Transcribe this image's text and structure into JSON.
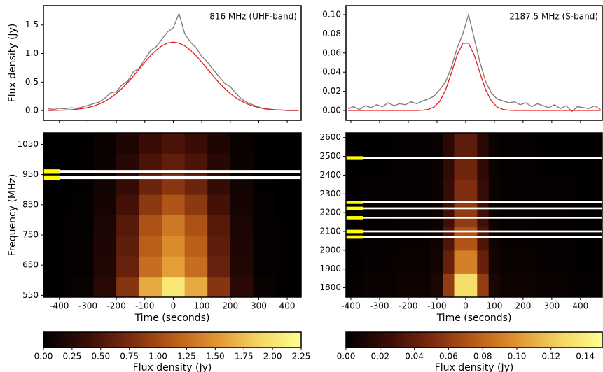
{
  "chart_data": [
    {
      "type": "line",
      "annotation": "816 MHz (UHF-band)",
      "ylabel": "Flux density (Jy)",
      "x": [
        -440,
        -420,
        -400,
        -380,
        -360,
        -340,
        -320,
        -300,
        -280,
        -260,
        -240,
        -220,
        -200,
        -180,
        -160,
        -140,
        -120,
        -100,
        -80,
        -60,
        -40,
        -20,
        0,
        20,
        40,
        60,
        80,
        100,
        120,
        140,
        160,
        180,
        200,
        220,
        240,
        260,
        280,
        300,
        320,
        340,
        360,
        380,
        400,
        420,
        440
      ],
      "series": [
        {
          "color": "#808080",
          "values": [
            0.03,
            0.02,
            0.04,
            0.03,
            0.05,
            0.04,
            0.06,
            0.09,
            0.12,
            0.15,
            0.22,
            0.31,
            0.33,
            0.45,
            0.52,
            0.68,
            0.74,
            0.9,
            1.05,
            1.12,
            1.25,
            1.38,
            1.45,
            1.7,
            1.35,
            1.2,
            1.1,
            0.95,
            0.85,
            0.72,
            0.6,
            0.48,
            0.42,
            0.3,
            0.2,
            0.14,
            0.1,
            0.06,
            0.03,
            0.02,
            0.01,
            0.01,
            0.0,
            0.0,
            0.0
          ]
        },
        {
          "color": "#e41a1c",
          "values": [
            0.001,
            0.003,
            0.005,
            0.008,
            0.013,
            0.022,
            0.034,
            0.053,
            0.079,
            0.115,
            0.162,
            0.224,
            0.299,
            0.39,
            0.493,
            0.607,
            0.728,
            0.848,
            0.961,
            1.059,
            1.135,
            1.183,
            1.2,
            1.183,
            1.135,
            1.059,
            0.961,
            0.848,
            0.728,
            0.607,
            0.493,
            0.39,
            0.299,
            0.224,
            0.162,
            0.115,
            0.079,
            0.053,
            0.034,
            0.022,
            0.013,
            0.008,
            0.005,
            0.003,
            0.001
          ]
        }
      ],
      "xlim": [
        -456,
        449
      ],
      "ylim": [
        -0.17,
        1.84
      ],
      "yticks": [
        {
          "value": 0,
          "label": "0.0"
        },
        0.5,
        {
          "value": 1,
          "label": "1.0"
        },
        1.5
      ]
    },
    {
      "type": "line",
      "annotation": "2187.5 MHz (S-band)",
      "x": [
        -410,
        -390,
        -370,
        -350,
        -330,
        -310,
        -290,
        -270,
        -250,
        -230,
        -210,
        -190,
        -170,
        -150,
        -130,
        -110,
        -90,
        -70,
        -50,
        -30,
        -10,
        10,
        30,
        50,
        70,
        90,
        110,
        130,
        150,
        170,
        190,
        210,
        230,
        250,
        270,
        290,
        310,
        330,
        350,
        370,
        390,
        410,
        430,
        450,
        470
      ],
      "series": [
        {
          "color": "#808080",
          "values": [
            0.002,
            0.004,
            0.001,
            0.005,
            0.003,
            0.006,
            0.004,
            0.008,
            0.005,
            0.007,
            0.006,
            0.009,
            0.007,
            0.01,
            0.012,
            0.015,
            0.022,
            0.03,
            0.045,
            0.065,
            0.08,
            0.1,
            0.075,
            0.05,
            0.03,
            0.018,
            0.012,
            0.01,
            0.008,
            0.009,
            0.006,
            0.008,
            0.004,
            0.007,
            0.005,
            0.003,
            0.006,
            0.002,
            0.005,
            -0.001,
            0.004,
            0.003,
            0.002,
            0.005,
            0.001
          ]
        },
        {
          "color": "#e41a1c",
          "values": [
            0,
            0,
            0,
            0,
            0,
            0,
            0,
            0,
            0,
            0,
            0,
            0,
            0,
            0.0003,
            0.0011,
            0.0036,
            0.0097,
            0.0214,
            0.0389,
            0.0577,
            0.0702,
            0.0702,
            0.0577,
            0.0389,
            0.0214,
            0.0097,
            0.0036,
            0.0011,
            0.0003,
            0,
            0,
            0,
            0,
            0,
            0,
            0,
            0,
            0,
            0,
            0,
            0,
            0,
            0,
            0,
            0
          ]
        }
      ],
      "xlim": [
        -417,
        476
      ],
      "ylim": [
        -0.0102,
        0.1095
      ],
      "yticks": [
        {
          "value": 0,
          "label": "0.00"
        },
        {
          "value": 0.02,
          "label": "0.02"
        },
        {
          "value": 0.04,
          "label": "0.04"
        },
        {
          "value": 0.06,
          "label": "0.06"
        },
        {
          "value": 0.08,
          "label": "0.08"
        },
        {
          "value": 0.1,
          "label": "0.10"
        }
      ]
    },
    {
      "type": "heatmap",
      "xlabel": "Time (seconds)",
      "ylabel": "Frequency (MHz)",
      "x_edges": [
        -456,
        -360,
        -280,
        -200,
        -120,
        -40,
        40,
        120,
        200,
        280,
        360,
        449
      ],
      "y_edges": [
        544,
        612,
        680,
        748,
        816,
        884,
        952,
        1020,
        1088
      ],
      "z": [
        [
          0.01,
          0.05,
          0.27,
          0.83,
          1.63,
          2.04,
          1.63,
          0.83,
          0.27,
          0.05,
          0.01
        ],
        [
          0.01,
          0.04,
          0.21,
          0.64,
          1.25,
          1.56,
          1.25,
          0.64,
          0.21,
          0.04,
          0.01
        ],
        [
          0.01,
          0.04,
          0.19,
          0.59,
          1.15,
          1.44,
          1.15,
          0.59,
          0.19,
          0.04,
          0.01
        ],
        [
          0.01,
          0.03,
          0.18,
          0.54,
          1.06,
          1.32,
          1.06,
          0.54,
          0.18,
          0.03,
          0.01
        ],
        [
          0.0,
          0.03,
          0.14,
          0.44,
          0.86,
          1.08,
          0.86,
          0.44,
          0.14,
          0.03,
          0.0
        ],
        [
          0.0,
          0.02,
          0.11,
          0.34,
          0.67,
          0.84,
          0.67,
          0.34,
          0.11,
          0.02,
          0.0
        ],
        [
          0.0,
          0.02,
          0.08,
          0.25,
          0.48,
          0.6,
          0.48,
          0.25,
          0.08,
          0.02,
          0.0
        ],
        [
          0.0,
          0.01,
          0.06,
          0.2,
          0.38,
          0.48,
          0.38,
          0.2,
          0.06,
          0.01,
          0.0
        ]
      ],
      "masked_bands": [
        [
          935,
          945
        ],
        [
          955,
          965
        ]
      ],
      "mask_color": "#ffffff",
      "flag_color": "#ffff00",
      "colormap": [
        "#000000",
        "#3a0c06",
        "#7a2a0e",
        "#b85a18",
        "#e09430",
        "#f4d460",
        "#ffff90"
      ],
      "xlim": [
        -456,
        449
      ],
      "ylim": [
        544,
        1088
      ],
      "xticks": [
        -400,
        -300,
        -200,
        -100,
        0,
        100,
        200,
        300,
        400
      ],
      "yticks": [
        550,
        650,
        750,
        850,
        950,
        1050
      ],
      "colorbar": {
        "label": "Flux density (Jy)",
        "lim": [
          0,
          2.25
        ],
        "ticks": [
          {
            "value": 0,
            "label": "0.00"
          },
          {
            "value": 0.25,
            "label": "0.25"
          },
          {
            "value": 0.5,
            "label": "0.50"
          },
          {
            "value": 0.75,
            "label": "0.75"
          },
          {
            "value": 1,
            "label": "1.00"
          },
          {
            "value": 1.25,
            "label": "1.25"
          },
          {
            "value": 1.5,
            "label": "1.50"
          },
          {
            "value": 1.75,
            "label": "1.75"
          },
          {
            "value": 2,
            "label": "2.00"
          },
          {
            "value": 2.25,
            "label": "2.25"
          }
        ]
      }
    },
    {
      "type": "heatmap",
      "xlabel": "Time (seconds)",
      "x_edges": [
        -417,
        -360,
        -240,
        -120,
        -80,
        -40,
        0,
        40,
        80,
        120,
        240,
        360,
        476
      ],
      "y_edges": [
        1750,
        1875,
        2000,
        2125,
        2250,
        2375,
        2500,
        2625
      ],
      "z": [
        [
          0.002,
          0.004,
          0.006,
          0.012,
          0.06,
          0.13,
          0.13,
          0.06,
          0.012,
          0.006,
          0.004,
          0.002
        ],
        [
          0.001,
          0.003,
          0.004,
          0.008,
          0.042,
          0.091,
          0.091,
          0.042,
          0.008,
          0.004,
          0.003,
          0.001
        ],
        [
          0.001,
          0.002,
          0.003,
          0.007,
          0.033,
          0.072,
          0.072,
          0.033,
          0.007,
          0.003,
          0.002,
          0.001
        ],
        [
          0.001,
          0.002,
          0.003,
          0.005,
          0.027,
          0.059,
          0.059,
          0.027,
          0.005,
          0.003,
          0.002,
          0.001
        ],
        [
          0.001,
          0.002,
          0.002,
          0.005,
          0.024,
          0.052,
          0.052,
          0.024,
          0.005,
          0.002,
          0.002,
          0.001
        ],
        [
          0.001,
          0.001,
          0.002,
          0.004,
          0.021,
          0.046,
          0.046,
          0.021,
          0.004,
          0.002,
          0.001,
          0.001
        ],
        [
          0.001,
          0.001,
          0.002,
          0.004,
          0.018,
          0.039,
          0.039,
          0.018,
          0.004,
          0.002,
          0.001,
          0.001
        ]
      ],
      "masked_bands": [
        [
          2485,
          2497
        ],
        [
          2250,
          2260
        ],
        [
          2218,
          2228
        ],
        [
          2168,
          2178
        ],
        [
          2095,
          2105
        ],
        [
          2065,
          2075
        ]
      ],
      "mask_color": "#ffffff",
      "flag_color": "#ffff00",
      "colormap": [
        "#000000",
        "#3a0c06",
        "#7a2a0e",
        "#b85a18",
        "#e09430",
        "#f4d460",
        "#ffff90"
      ],
      "xlim": [
        -417,
        476
      ],
      "ylim": [
        1750,
        2625
      ],
      "xticks": [
        -400,
        -300,
        -200,
        -100,
        0,
        100,
        200,
        300,
        400
      ],
      "yticks": [
        1800,
        1900,
        2000,
        2100,
        2200,
        2300,
        2400,
        2500,
        2600
      ],
      "colorbar": {
        "label": "Flux density (Jy)",
        "lim": [
          0,
          0.15
        ],
        "ticks": [
          {
            "value": 0,
            "label": "0.00"
          },
          {
            "value": 0.02,
            "label": "0.02"
          },
          {
            "value": 0.04,
            "label": "0.04"
          },
          {
            "value": 0.06,
            "label": "0.06"
          },
          {
            "value": 0.08,
            "label": "0.08"
          },
          {
            "value": 0.1,
            "label": "0.10"
          },
          {
            "value": 0.12,
            "label": "0.12"
          },
          {
            "value": 0.14,
            "label": "0.14"
          }
        ]
      }
    }
  ]
}
